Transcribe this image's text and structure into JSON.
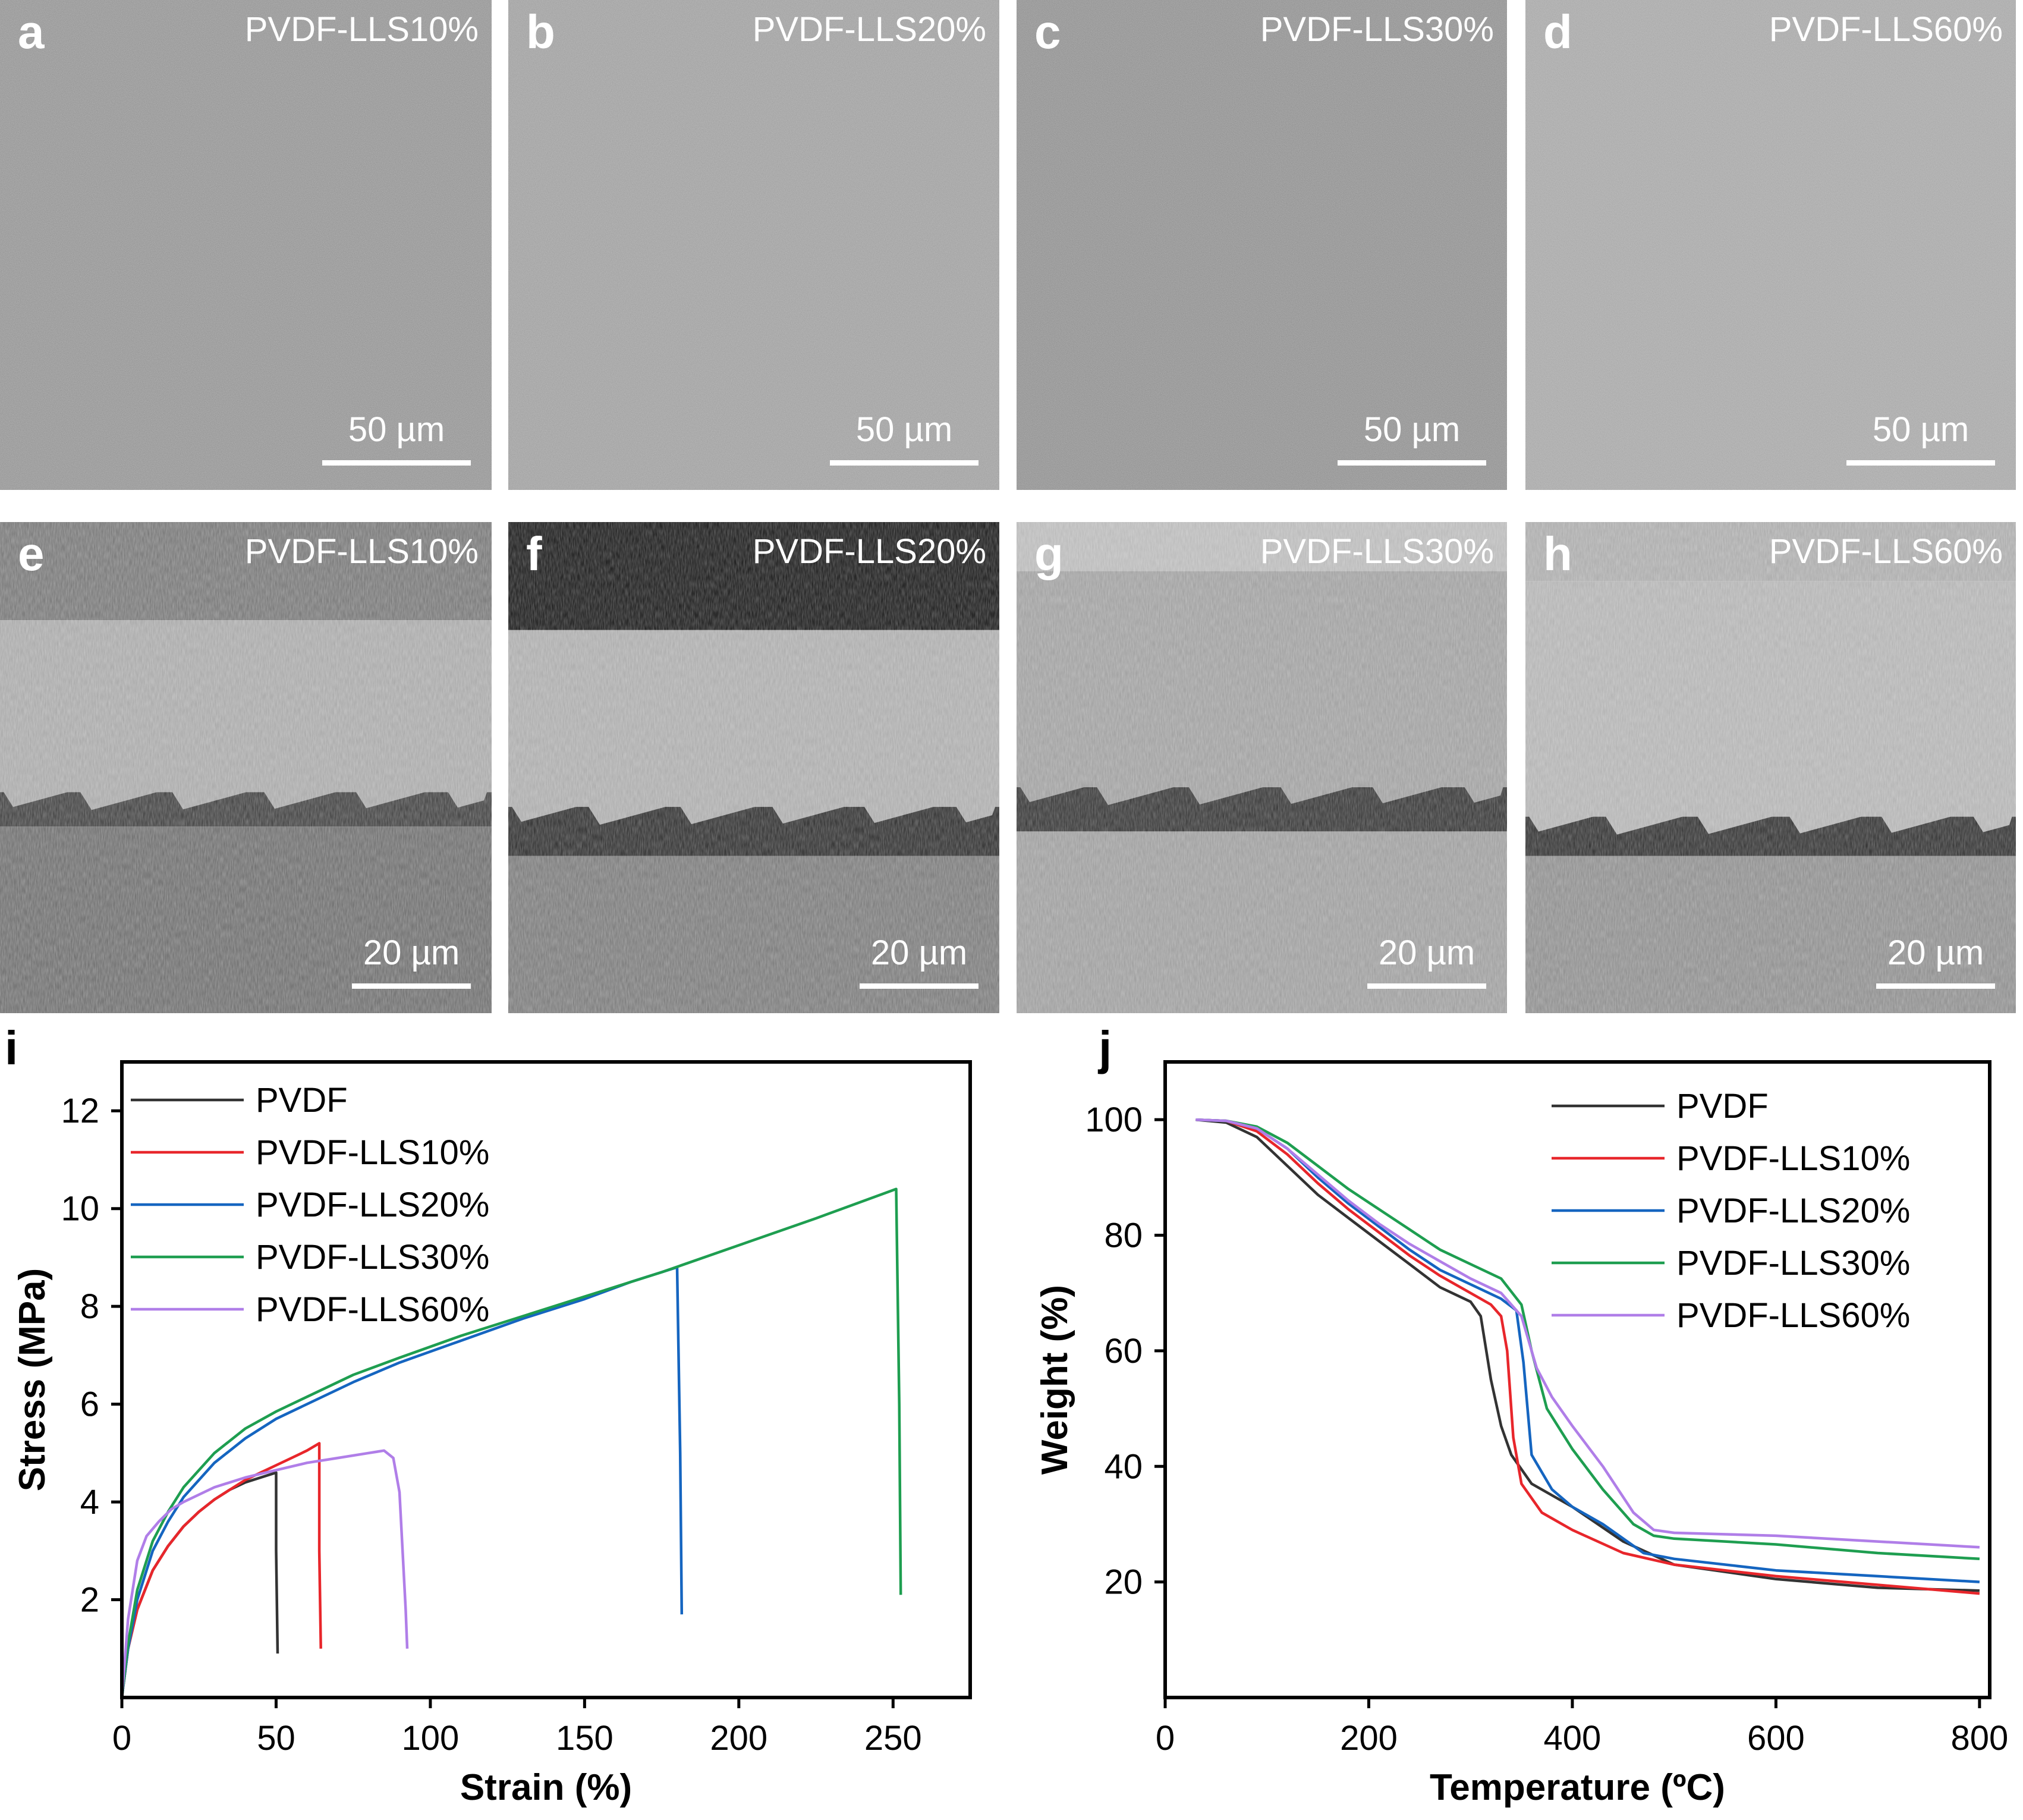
{
  "sem_panels": [
    {
      "letter": "a",
      "sample": "PVDF-LLS10%",
      "scale": "50 µm"
    },
    {
      "letter": "b",
      "sample": "PVDF-LLS20%",
      "scale": "50 µm"
    },
    {
      "letter": "c",
      "sample": "PVDF-LLS30%",
      "scale": "50 µm"
    },
    {
      "letter": "d",
      "sample": "PVDF-LLS60%",
      "scale": "50 µm"
    },
    {
      "letter": "e",
      "sample": "PVDF-LLS10%",
      "scale": "20 µm"
    },
    {
      "letter": "f",
      "sample": "PVDF-LLS20%",
      "scale": "20 µm"
    },
    {
      "letter": "g",
      "sample": "PVDF-LLS30%",
      "scale": "20 µm"
    },
    {
      "letter": "h",
      "sample": "PVDF-LLS60%",
      "scale": "20 µm"
    }
  ],
  "chart_data": [
    {
      "panel": "i",
      "type": "line",
      "xlabel": "Strain (%)",
      "ylabel": "Stress (MPa)",
      "xlim": [
        0,
        275
      ],
      "ylim": [
        0,
        13
      ],
      "xticks": [
        0,
        50,
        100,
        150,
        200,
        250
      ],
      "yticks": [
        2,
        4,
        6,
        8,
        10,
        12
      ],
      "legend_position": "top-left",
      "series": [
        {
          "name": "PVDF",
          "color": "#333333",
          "x": [
            0,
            2,
            5,
            10,
            15,
            20,
            25,
            30,
            35,
            40,
            45,
            50,
            50,
            50.5
          ],
          "y": [
            0,
            1.0,
            1.8,
            2.6,
            3.1,
            3.5,
            3.8,
            4.05,
            4.25,
            4.4,
            4.5,
            4.6,
            3.0,
            0.9
          ]
        },
        {
          "name": "PVDF-LLS10%",
          "color": "#e8262b",
          "x": [
            0,
            2,
            5,
            10,
            15,
            20,
            25,
            30,
            35,
            40,
            45,
            50,
            55,
            60,
            64,
            64,
            64.5
          ],
          "y": [
            0,
            1.0,
            1.8,
            2.6,
            3.1,
            3.5,
            3.8,
            4.05,
            4.25,
            4.45,
            4.6,
            4.75,
            4.9,
            5.05,
            5.2,
            3.0,
            1.0
          ]
        },
        {
          "name": "PVDF-LLS20%",
          "color": "#1565c0",
          "x": [
            0,
            2,
            5,
            10,
            15,
            20,
            30,
            40,
            50,
            60,
            75,
            90,
            110,
            130,
            150,
            165,
            180,
            181,
            181.5
          ],
          "y": [
            0,
            1.0,
            2.0,
            3.0,
            3.6,
            4.1,
            4.8,
            5.3,
            5.7,
            6.0,
            6.45,
            6.85,
            7.3,
            7.75,
            8.15,
            8.5,
            8.8,
            5.0,
            1.7
          ]
        },
        {
          "name": "PVDF-LLS30%",
          "color": "#1e9e50",
          "x": [
            0,
            2,
            5,
            10,
            15,
            20,
            30,
            40,
            50,
            60,
            75,
            90,
            110,
            130,
            150,
            175,
            200,
            225,
            251,
            252,
            252.5
          ],
          "y": [
            0,
            1.1,
            2.2,
            3.2,
            3.8,
            4.3,
            5.0,
            5.5,
            5.85,
            6.15,
            6.6,
            6.95,
            7.4,
            7.8,
            8.2,
            8.7,
            9.25,
            9.8,
            10.4,
            6.0,
            2.1
          ]
        },
        {
          "name": "PVDF-LLS60%",
          "color": "#b07ee8",
          "x": [
            0,
            2,
            5,
            8,
            12,
            16,
            20,
            30,
            40,
            50,
            60,
            70,
            80,
            85,
            88,
            90,
            91,
            92,
            92.5
          ],
          "y": [
            0,
            1.6,
            2.8,
            3.3,
            3.6,
            3.85,
            4.0,
            4.3,
            4.5,
            4.65,
            4.8,
            4.9,
            5.0,
            5.05,
            4.9,
            4.2,
            3.0,
            1.8,
            1.0
          ]
        }
      ]
    },
    {
      "panel": "j",
      "type": "line",
      "xlabel": "Temperature (ºC)",
      "ylabel": "Weight (%)",
      "xlim": [
        0,
        810
      ],
      "ylim": [
        0,
        110
      ],
      "xticks": [
        0,
        200,
        400,
        600,
        800
      ],
      "yticks": [
        20,
        40,
        60,
        80,
        100
      ],
      "legend_position": "top-right",
      "series": [
        {
          "name": "PVDF",
          "color": "#333333",
          "x": [
            30,
            60,
            90,
            120,
            150,
            180,
            210,
            240,
            270,
            300,
            310,
            320,
            330,
            340,
            360,
            400,
            450,
            500,
            600,
            700,
            800
          ],
          "y": [
            100,
            99.5,
            97,
            92,
            87,
            83,
            79,
            75,
            71,
            68.5,
            66,
            55,
            47,
            42,
            37,
            33,
            27,
            23,
            20.5,
            19,
            18.5
          ]
        },
        {
          "name": "PVDF-LLS10%",
          "color": "#e8262b",
          "x": [
            30,
            60,
            90,
            120,
            150,
            180,
            210,
            240,
            270,
            300,
            320,
            330,
            336,
            342,
            350,
            370,
            400,
            450,
            500,
            600,
            700,
            800
          ],
          "y": [
            100,
            99.8,
            98,
            94,
            89,
            84.5,
            80.5,
            76.5,
            73,
            70,
            68,
            66,
            60,
            45,
            37,
            32,
            29,
            25,
            23,
            21,
            19.5,
            18
          ]
        },
        {
          "name": "PVDF-LLS20%",
          "color": "#1565c0",
          "x": [
            30,
            60,
            90,
            120,
            150,
            180,
            210,
            240,
            270,
            300,
            330,
            345,
            352,
            360,
            380,
            400,
            430,
            470,
            500,
            600,
            700,
            800
          ],
          "y": [
            100,
            99.8,
            98.5,
            95,
            90,
            85.5,
            81.5,
            77.5,
            74,
            71.5,
            69,
            67,
            58,
            42,
            36,
            33,
            30,
            25,
            24,
            22,
            21,
            20
          ]
        },
        {
          "name": "PVDF-LLS30%",
          "color": "#1e9e50",
          "x": [
            30,
            60,
            90,
            120,
            150,
            180,
            210,
            240,
            270,
            300,
            330,
            350,
            360,
            375,
            400,
            430,
            460,
            480,
            500,
            600,
            700,
            800
          ],
          "y": [
            100,
            99.8,
            98.8,
            96,
            92,
            88,
            84.5,
            81,
            77.5,
            75,
            72.5,
            68,
            60,
            50,
            43,
            36,
            30,
            28,
            27.5,
            26.5,
            25,
            24
          ]
        },
        {
          "name": "PVDF-LLS60%",
          "color": "#b07ee8",
          "x": [
            30,
            60,
            90,
            120,
            150,
            180,
            210,
            240,
            270,
            300,
            330,
            350,
            365,
            380,
            400,
            430,
            460,
            480,
            500,
            600,
            700,
            800
          ],
          "y": [
            100,
            99.8,
            98.5,
            95,
            90.5,
            86,
            82,
            78.5,
            75.5,
            72.5,
            70,
            66,
            57,
            52,
            47,
            40,
            32,
            29,
            28.5,
            28,
            27,
            26
          ]
        }
      ]
    }
  ]
}
